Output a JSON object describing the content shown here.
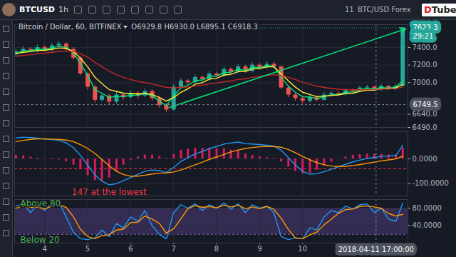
{
  "toolbar": {
    "symbol": "BTCUSD",
    "interval": "1h",
    "date_label": "11",
    "symbol_description": "BTC/USD Forex",
    "logo": "DTube"
  },
  "crosshair": {
    "x": 11.71,
    "x_label": "2018-04-11 17:00:00",
    "y": 6749.5
  },
  "chart_data": [
    {
      "type": "candlestick",
      "title": "Bitcoin / Dollar, 60, BITFINEX",
      "subtitle": "O6929.8 H6930.0 L6895.1 C6918.3",
      "x": [
        3.33,
        3.5,
        3.67,
        3.83,
        4,
        4.17,
        4.33,
        4.5,
        4.67,
        4.83,
        5,
        5.17,
        5.33,
        5.5,
        5.67,
        5.83,
        6,
        6.17,
        6.33,
        6.5,
        6.67,
        6.83,
        7,
        7.17,
        7.33,
        7.5,
        7.67,
        7.83,
        8,
        8.17,
        8.33,
        8.5,
        8.67,
        8.83,
        9,
        9.17,
        9.33,
        9.5,
        9.67,
        9.83,
        10,
        10.17,
        10.33,
        10.5,
        10.67,
        10.83,
        11,
        11.17,
        11.33,
        11.5,
        11.67,
        11.83,
        12,
        12.17,
        12.33
      ],
      "series": [
        {
          "type": "candlestick",
          "colors": [
            "#26a69a",
            "#ef5350"
          ],
          "open": [
            7320,
            7350,
            7380,
            7360,
            7400,
            7370,
            7420,
            7440,
            7380,
            7280,
            7100,
            6950,
            6800,
            6850,
            6780,
            6860,
            6830,
            6880,
            6850,
            6900,
            6820,
            6740,
            6690,
            6950,
            7020,
            7000,
            7060,
            7040,
            7100,
            7080,
            7150,
            7120,
            7180,
            7130,
            7200,
            7170,
            7210,
            7180,
            6940,
            6860,
            6820,
            6790,
            6830,
            6800,
            6860,
            6880,
            6870,
            6910,
            6900,
            6940,
            6950,
            6920,
            6960,
            6930,
            6960
          ],
          "high": [
            7380,
            7410,
            7400,
            7430,
            7420,
            7450,
            7470,
            7460,
            7400,
            7300,
            7120,
            6970,
            6880,
            6870,
            6890,
            6880,
            6910,
            6900,
            6930,
            6920,
            6840,
            6760,
            6980,
            7050,
            7040,
            7090,
            7080,
            7130,
            7120,
            7180,
            7170,
            7210,
            7200,
            7230,
            7220,
            7240,
            7230,
            7190,
            6960,
            6880,
            6840,
            6860,
            6850,
            6890,
            6900,
            6900,
            6930,
            6930,
            6960,
            6970,
            6960,
            6980,
            6970,
            6980,
            7630
          ],
          "low": [
            7290,
            7330,
            7340,
            7340,
            7350,
            7350,
            7400,
            7360,
            7260,
            7080,
            6920,
            6770,
            6780,
            6750,
            6760,
            6800,
            6810,
            6820,
            6830,
            6790,
            6710,
            6660,
            6680,
            6930,
            6980,
            6980,
            7020,
            7020,
            7060,
            7060,
            7100,
            7100,
            7110,
            7110,
            7150,
            7150,
            7160,
            6920,
            6830,
            6790,
            6760,
            6770,
            6780,
            6790,
            6840,
            6850,
            6850,
            6880,
            6890,
            6920,
            6900,
            6900,
            6910,
            6910,
            6940
          ],
          "close": [
            7350,
            7380,
            7360,
            7400,
            7370,
            7420,
            7440,
            7380,
            7280,
            7100,
            6950,
            6800,
            6850,
            6780,
            6860,
            6830,
            6880,
            6850,
            6900,
            6820,
            6740,
            6690,
            6950,
            7020,
            7000,
            7060,
            7040,
            7100,
            7080,
            7150,
            7120,
            7180,
            7130,
            7200,
            7170,
            7210,
            7180,
            6940,
            6860,
            6820,
            6790,
            6830,
            6800,
            6860,
            6880,
            6870,
            6910,
            6900,
            6940,
            6950,
            6920,
            6960,
            6930,
            6960,
            7623.3
          ]
        },
        {
          "type": "line",
          "color": "#00e676",
          "values": [
            7340,
            7360,
            7365,
            7380,
            7378,
            7395,
            7415,
            7400,
            7340,
            7220,
            7080,
            6920,
            6880,
            6830,
            6845,
            6838,
            6860,
            6855,
            6880,
            6848,
            6790,
            6735,
            6850,
            6940,
            6970,
            7020,
            7030,
            7070,
            7075,
            7115,
            7118,
            7150,
            7140,
            7175,
            7172,
            7195,
            7188,
            7060,
            6960,
            6890,
            6840,
            6835,
            6818,
            6840,
            6860,
            6865,
            6890,
            6895,
            6920,
            6935,
            6928,
            6945,
            6938,
            6950,
            7020
          ]
        },
        {
          "type": "line",
          "color": "#ffeb3b",
          "values": [
            7330,
            7345,
            7352,
            7365,
            7368,
            7380,
            7395,
            7390,
            7355,
            7280,
            7180,
            7060,
            6990,
            6920,
            6900,
            6880,
            6878,
            6870,
            6880,
            6865,
            6830,
            6790,
            6830,
            6890,
            6930,
            6980,
            7000,
            7040,
            7050,
            7085,
            7095,
            7125,
            7128,
            7155,
            7160,
            7180,
            7180,
            7100,
            7020,
            6950,
            6890,
            6865,
            6840,
            6845,
            6855,
            6860,
            6875,
            6880,
            6900,
            6915,
            6915,
            6930,
            6930,
            6940,
            6980
          ]
        },
        {
          "type": "line",
          "color": "#c62828",
          "values": [
            7300,
            7310,
            7318,
            7328,
            7335,
            7345,
            7355,
            7360,
            7355,
            7330,
            7290,
            7230,
            7180,
            7130,
            7090,
            7060,
            7035,
            7015,
            7000,
            6985,
            6965,
            6945,
            6940,
            6945,
            6950,
            6960,
            6970,
            6985,
            6995,
            7010,
            7020,
            7035,
            7045,
            7060,
            7070,
            7082,
            7090,
            7080,
            7060,
            7035,
            7005,
            6980,
            6960,
            6945,
            6935,
            6925,
            6920,
            6918,
            6918,
            6920,
            6922,
            6926,
            6928,
            6932,
            6950
          ]
        }
      ],
      "xlim": [
        3.3,
        12.45
      ],
      "xticks": [
        4,
        5,
        6,
        7,
        8,
        9,
        10
      ],
      "ylim": [
        6490,
        7660
      ],
      "yticks": [
        {
          "value": 7400,
          "label": "7400.0"
        },
        {
          "value": 7200,
          "label": "7200.0"
        },
        {
          "value": 7000,
          "label": "7000.0"
        },
        {
          "value": 6640,
          "label": "6640.0"
        },
        {
          "value": 6490,
          "label": "6490.0"
        }
      ],
      "grid": true,
      "tick_labels": "y",
      "last_price": {
        "value": 7623.3,
        "countdown": "29:21",
        "color": "#26a69a"
      },
      "trend_arrow": {
        "x1": 6.9,
        "y1": 6717,
        "x2": 12.4,
        "y2": 7611,
        "color": "#00e676"
      }
    },
    {
      "type": "line",
      "x": [
        3.33,
        3.5,
        3.67,
        3.83,
        4,
        4.17,
        4.33,
        4.5,
        4.67,
        4.83,
        5,
        5.17,
        5.33,
        5.5,
        5.67,
        5.83,
        6,
        6.17,
        6.33,
        6.5,
        6.67,
        6.83,
        7,
        7.17,
        7.33,
        7.5,
        7.67,
        7.83,
        8,
        8.17,
        8.33,
        8.5,
        8.67,
        8.83,
        9,
        9.17,
        9.33,
        9.5,
        9.67,
        9.83,
        10,
        10.17,
        10.33,
        10.5,
        10.67,
        10.83,
        11,
        11.17,
        11.33,
        11.5,
        11.67,
        11.83,
        12,
        12.17,
        12.33
      ],
      "series": [
        {
          "type": "bar",
          "color": "#d81b60",
          "values": [
            15,
            13,
            7,
            3,
            -1,
            -2,
            -4,
            -11,
            -25,
            -43,
            -67,
            -87,
            -88,
            -77,
            -50,
            -25,
            -5,
            8,
            16,
            16,
            10,
            2,
            18,
            35,
            40,
            44,
            43,
            44,
            42,
            42,
            36,
            32,
            20,
            14,
            9,
            5,
            2,
            -12,
            -33,
            -50,
            -60,
            -58,
            -45,
            -28,
            -13,
            -1,
            8,
            15,
            18,
            20,
            19,
            18,
            16,
            14,
            44
          ]
        },
        {
          "type": "line",
          "color": "#2196f3",
          "values": [
            85,
            88,
            86,
            84,
            80,
            78,
            75,
            65,
            45,
            15,
            -25,
            -65,
            -90,
            -105,
            -100,
            -88,
            -75,
            -62,
            -50,
            -45,
            -48,
            -55,
            -35,
            -10,
            5,
            20,
            30,
            42,
            50,
            60,
            64,
            68,
            62,
            60,
            58,
            55,
            52,
            35,
            5,
            -25,
            -50,
            -62,
            -60,
            -52,
            -42,
            -32,
            -22,
            -12,
            -5,
            2,
            6,
            10,
            12,
            14,
            55
          ]
        },
        {
          "type": "line",
          "color": "#ff9800",
          "values": [
            70,
            75,
            79,
            81,
            81,
            80,
            79,
            76,
            70,
            58,
            42,
            22,
            -2,
            -28,
            -50,
            -63,
            -70,
            -70,
            -66,
            -61,
            -58,
            -57,
            -53,
            -45,
            -35,
            -24,
            -13,
            -2,
            8,
            18,
            28,
            36,
            42,
            46,
            49,
            50,
            50,
            47,
            38,
            25,
            10,
            -4,
            -15,
            -24,
            -29,
            -31,
            -30,
            -27,
            -23,
            -18,
            -13,
            -8,
            -4,
            0,
            11
          ]
        }
      ],
      "xlim": [
        3.3,
        12.45
      ],
      "xticks": [
        4,
        5,
        6,
        7,
        8,
        9,
        10
      ],
      "ylim": [
        -150,
        110
      ],
      "yticks": [
        {
          "value": 0,
          "label": "0.0000"
        },
        {
          "value": -100,
          "label": "-100.0000"
        }
      ],
      "grid": true,
      "tick_labels": "y",
      "reference_line": {
        "value": -40,
        "color": "#f23645",
        "line_style": "dashed"
      },
      "annotations": [
        {
          "text": "147 at the lowest",
          "color": "#f23645",
          "anchor": "bottom"
        }
      ]
    },
    {
      "type": "line",
      "x": [
        3.33,
        3.5,
        3.67,
        3.83,
        4,
        4.17,
        4.33,
        4.5,
        4.67,
        4.83,
        5,
        5.17,
        5.33,
        5.5,
        5.67,
        5.83,
        6,
        6.17,
        6.33,
        6.5,
        6.67,
        6.83,
        7,
        7.17,
        7.33,
        7.5,
        7.67,
        7.83,
        8,
        8.17,
        8.33,
        8.5,
        8.67,
        8.83,
        9,
        9.17,
        9.33,
        9.5,
        9.67,
        9.83,
        10,
        10.17,
        10.33,
        10.5,
        10.67,
        10.83,
        11,
        11.17,
        11.33,
        11.5,
        11.67,
        11.83,
        12,
        12.17,
        12.33
      ],
      "series": [
        {
          "type": "line",
          "color": "#2196f3",
          "values": [
            85,
            90,
            70,
            88,
            75,
            92,
            95,
            60,
            25,
            10,
            8,
            12,
            30,
            15,
            45,
            35,
            60,
            50,
            75,
            40,
            20,
            10,
            70,
            88,
            80,
            90,
            75,
            88,
            80,
            92,
            78,
            90,
            70,
            88,
            80,
            85,
            70,
            15,
            8,
            12,
            10,
            35,
            30,
            60,
            75,
            70,
            85,
            78,
            88,
            90,
            70,
            80,
            55,
            50,
            92
          ]
        },
        {
          "type": "line",
          "color": "#ff9800",
          "values": [
            80,
            85,
            82,
            83,
            78,
            85,
            88,
            82,
            60,
            32,
            15,
            10,
            17,
            19,
            30,
            32,
            47,
            48,
            62,
            55,
            45,
            23,
            33,
            56,
            79,
            86,
            82,
            84,
            81,
            87,
            83,
            87,
            79,
            83,
            79,
            84,
            78,
            57,
            31,
            12,
            10,
            19,
            25,
            42,
            55,
            68,
            77,
            78,
            84,
            85,
            83,
            80,
            68,
            62,
            66
          ]
        }
      ],
      "xlim": [
        3.3,
        12.45
      ],
      "xticks": [
        4,
        5,
        6,
        7,
        8,
        9,
        10
      ],
      "ylim": [
        0,
        100
      ],
      "yticks": [
        {
          "value": 80,
          "label": "80.0000"
        },
        {
          "value": 40,
          "label": "40.0000"
        }
      ],
      "grid": true,
      "band": {
        "from": 20,
        "to": 80,
        "color": "#7e57c2"
      },
      "annotations": [
        {
          "text": "Above 80",
          "color": "#4caf50",
          "anchor": "top-left"
        },
        {
          "text": "Below 20",
          "color": "#4caf50",
          "anchor": "bottom-left"
        }
      ]
    }
  ]
}
